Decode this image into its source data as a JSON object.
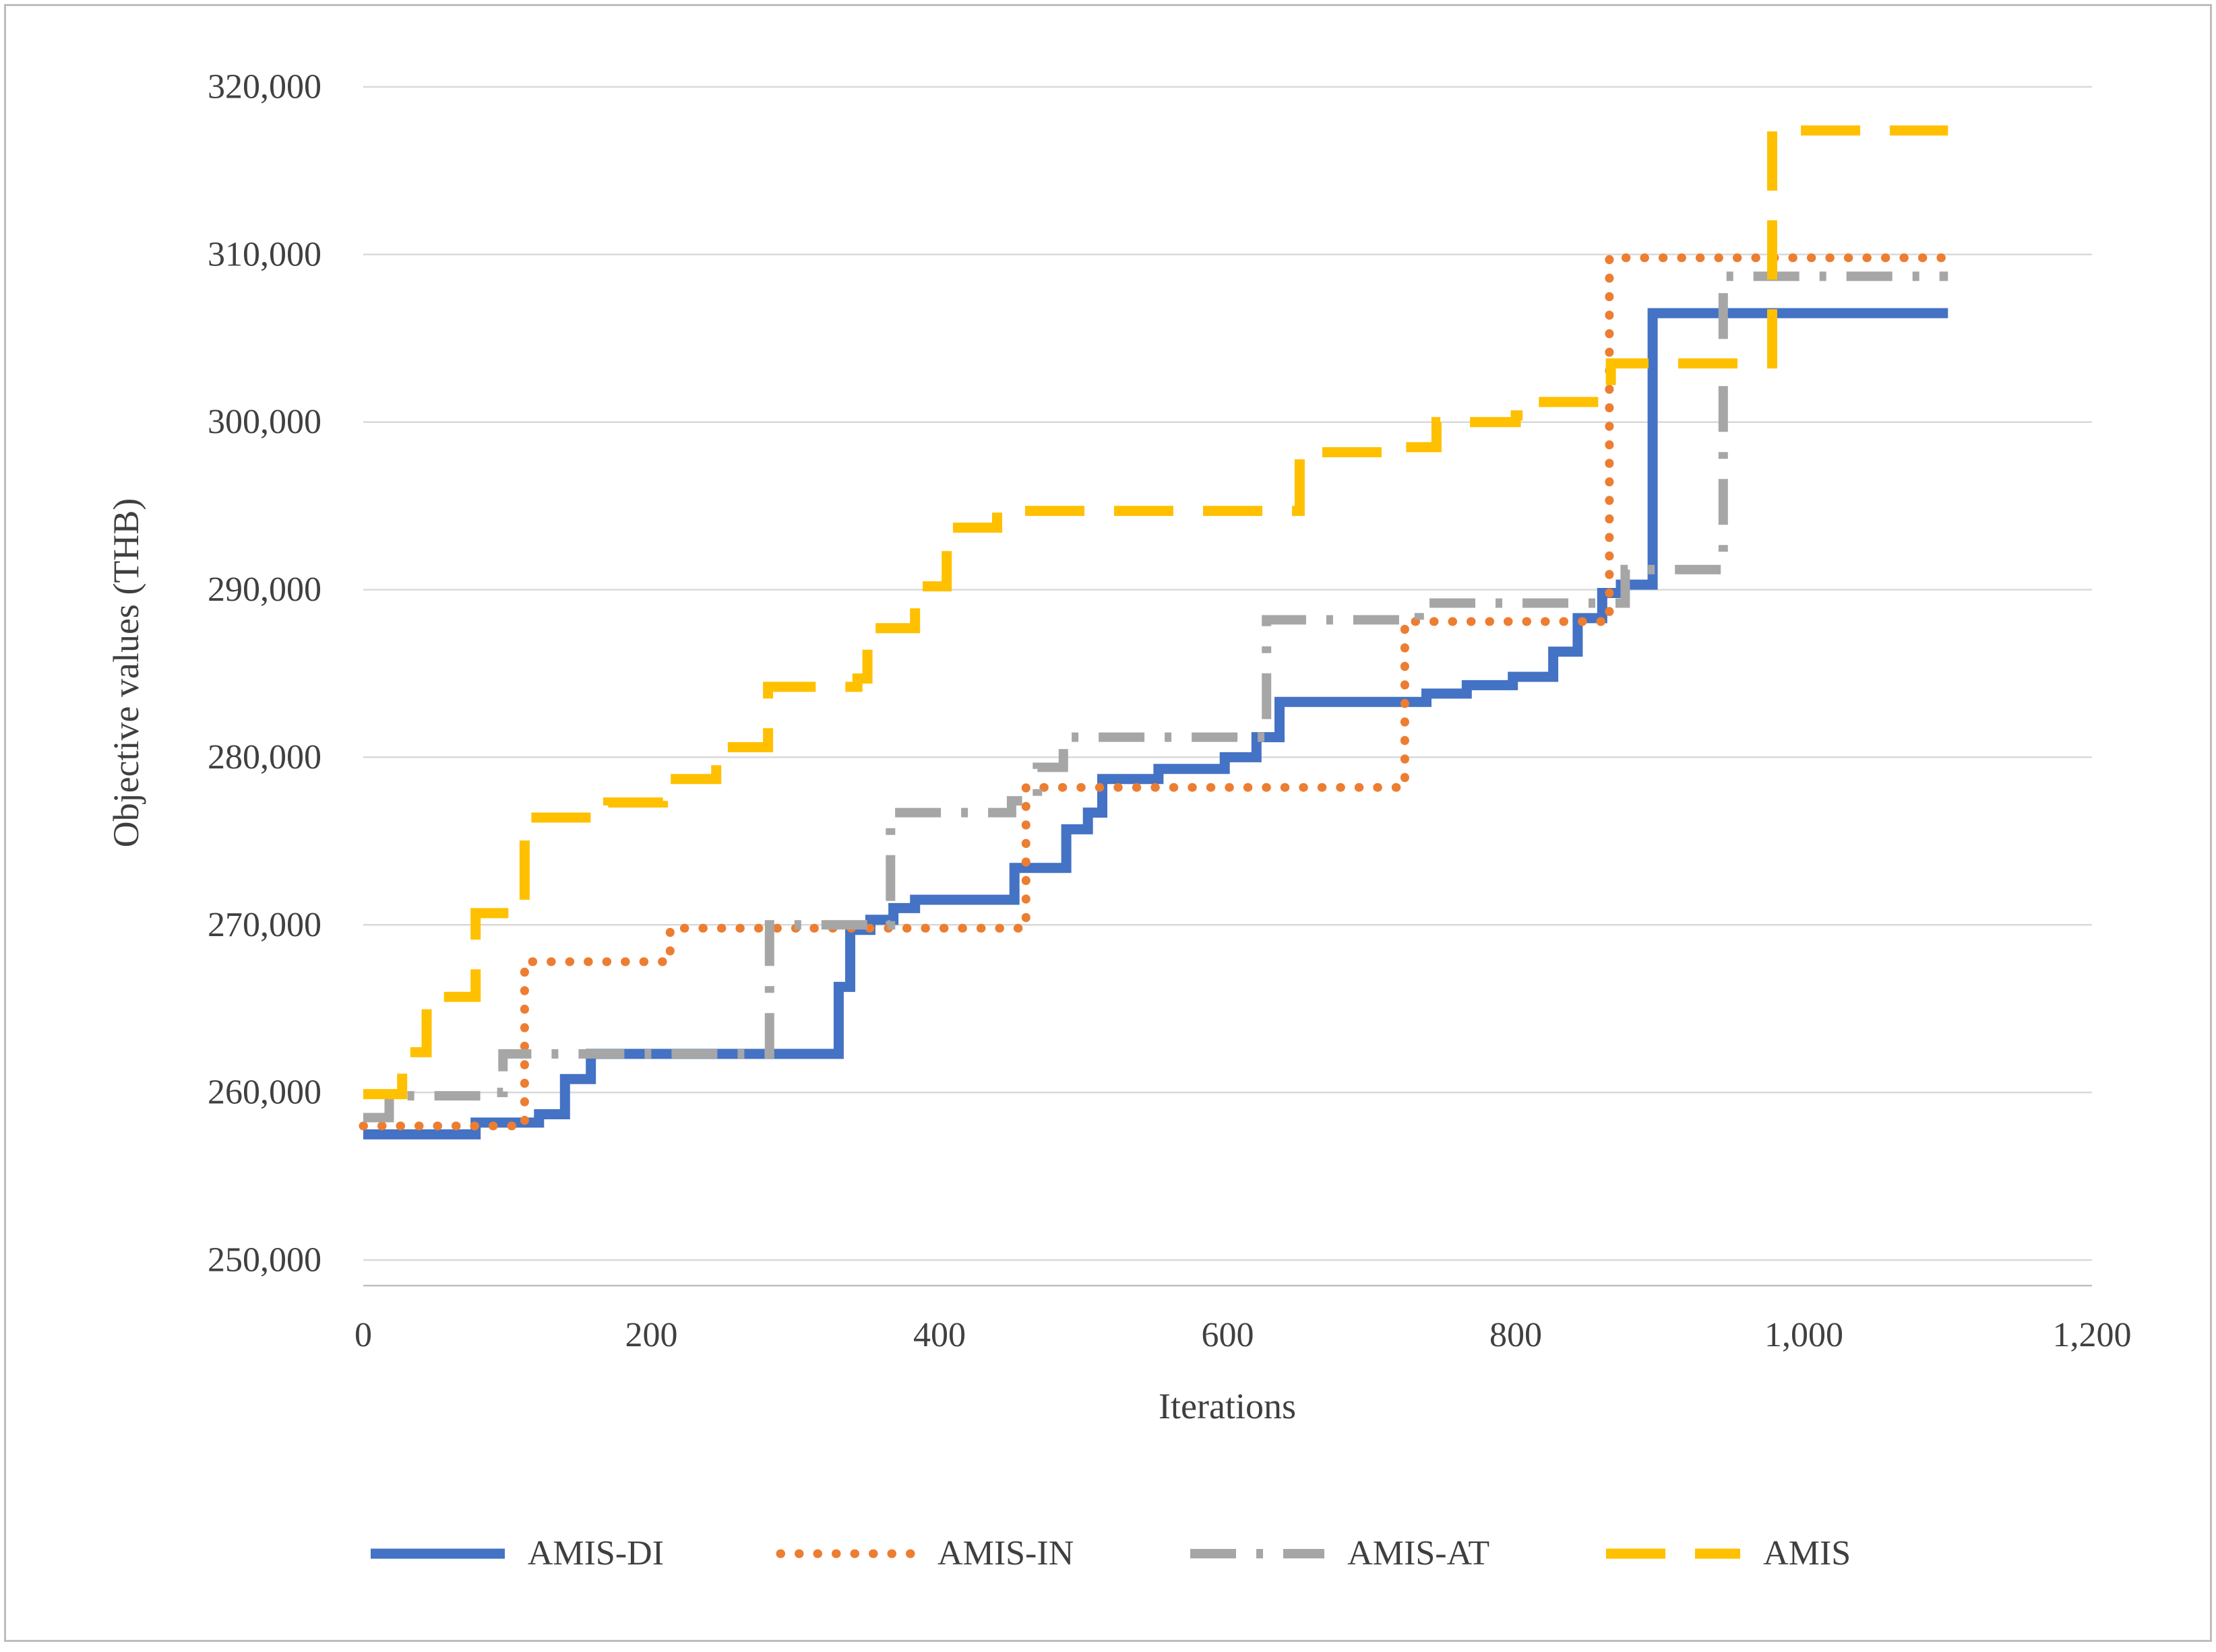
{
  "figure": {
    "background": "#ffffff",
    "border_color": "#bdbdbd"
  },
  "chart_data": {
    "type": "line",
    "subtype": "step",
    "title": "",
    "xlabel": "Iterations",
    "ylabel": "Objective values (THB)",
    "xlim": [
      0,
      1200
    ],
    "ylim": [
      250000,
      320000
    ],
    "grid": "horizontal",
    "legend_position": "bottom",
    "style": {
      "gridline_color": "#d9d9d9",
      "axis_color": "#bfbfbf",
      "text_color": "#404040"
    },
    "xticks": {
      "values": [
        0,
        200,
        400,
        600,
        800,
        1000,
        1200
      ],
      "labels": [
        "0",
        "200",
        "400",
        "600",
        "800",
        "1,000",
        "1,200"
      ]
    },
    "yticks": {
      "values": [
        250000,
        260000,
        270000,
        280000,
        290000,
        300000,
        310000,
        320000
      ],
      "labels": [
        "250,000",
        "260,000",
        "270,000",
        "280,000",
        "290,000",
        "300,000",
        "310,000",
        "320,000"
      ]
    },
    "series": [
      {
        "name": "AMIS-DI",
        "color": "#4472C4",
        "line_style": "solid",
        "points": [
          [
            0,
            257500
          ],
          [
            78,
            257500
          ],
          [
            78,
            258200
          ],
          [
            122,
            258200
          ],
          [
            122,
            258700
          ],
          [
            140,
            258700
          ],
          [
            140,
            260800
          ],
          [
            158,
            260800
          ],
          [
            158,
            262300
          ],
          [
            330,
            262300
          ],
          [
            330,
            266300
          ],
          [
            338,
            266300
          ],
          [
            338,
            269700
          ],
          [
            352,
            269700
          ],
          [
            352,
            270300
          ],
          [
            368,
            270300
          ],
          [
            368,
            271000
          ],
          [
            383,
            271000
          ],
          [
            383,
            271500
          ],
          [
            452,
            271500
          ],
          [
            452,
            273400
          ],
          [
            488,
            273400
          ],
          [
            488,
            275700
          ],
          [
            503,
            275700
          ],
          [
            503,
            276700
          ],
          [
            513,
            276700
          ],
          [
            513,
            278700
          ],
          [
            552,
            278700
          ],
          [
            552,
            279300
          ],
          [
            598,
            279300
          ],
          [
            598,
            280000
          ],
          [
            620,
            280000
          ],
          [
            620,
            281200
          ],
          [
            636,
            281200
          ],
          [
            636,
            283300
          ],
          [
            738,
            283300
          ],
          [
            738,
            283800
          ],
          [
            766,
            283800
          ],
          [
            766,
            284300
          ],
          [
            798,
            284300
          ],
          [
            798,
            284800
          ],
          [
            826,
            284800
          ],
          [
            826,
            286300
          ],
          [
            843,
            286300
          ],
          [
            843,
            288300
          ],
          [
            860,
            288300
          ],
          [
            860,
            289800
          ],
          [
            873,
            289800
          ],
          [
            873,
            290300
          ],
          [
            895,
            290300
          ],
          [
            895,
            306500
          ],
          [
            1100,
            306500
          ]
        ]
      },
      {
        "name": "AMIS-IN",
        "color": "#ED7D31",
        "line_style": "dotted",
        "points": [
          [
            0,
            258000
          ],
          [
            112,
            258000
          ],
          [
            112,
            267800
          ],
          [
            213,
            267800
          ],
          [
            213,
            269800
          ],
          [
            460,
            269800
          ],
          [
            460,
            278200
          ],
          [
            723,
            278200
          ],
          [
            723,
            288100
          ],
          [
            865,
            288100
          ],
          [
            865,
            309800
          ],
          [
            1100,
            309800
          ]
        ]
      },
      {
        "name": "AMIS-AT",
        "color": "#A6A6A6",
        "line_style": "dash-dot",
        "points": [
          [
            0,
            258500
          ],
          [
            18,
            258500
          ],
          [
            18,
            259800
          ],
          [
            92,
            259800
          ],
          [
            92,
            260000
          ],
          [
            97,
            260000
          ],
          [
            97,
            262300
          ],
          [
            282,
            262300
          ],
          [
            282,
            270000
          ],
          [
            366,
            270000
          ],
          [
            366,
            276700
          ],
          [
            450,
            276700
          ],
          [
            450,
            277400
          ],
          [
            468,
            277400
          ],
          [
            468,
            279400
          ],
          [
            486,
            279400
          ],
          [
            486,
            281200
          ],
          [
            627,
            281200
          ],
          [
            627,
            288200
          ],
          [
            733,
            288200
          ],
          [
            733,
            289200
          ],
          [
            876,
            289200
          ],
          [
            876,
            291200
          ],
          [
            944,
            291200
          ],
          [
            944,
            308700
          ],
          [
            1100,
            308700
          ]
        ]
      },
      {
        "name": "AMIS",
        "color": "#FFC000",
        "line_style": "long-dash",
        "points": [
          [
            0,
            259900
          ],
          [
            27,
            259900
          ],
          [
            27,
            262400
          ],
          [
            44,
            262400
          ],
          [
            44,
            265700
          ],
          [
            78,
            265700
          ],
          [
            78,
            270700
          ],
          [
            112,
            270700
          ],
          [
            112,
            276400
          ],
          [
            170,
            276400
          ],
          [
            170,
            277300
          ],
          [
            208,
            277300
          ],
          [
            208,
            278700
          ],
          [
            245,
            278700
          ],
          [
            245,
            280600
          ],
          [
            281,
            280600
          ],
          [
            281,
            284200
          ],
          [
            343,
            284200
          ],
          [
            343,
            284700
          ],
          [
            350,
            284700
          ],
          [
            350,
            287700
          ],
          [
            383,
            287700
          ],
          [
            383,
            290200
          ],
          [
            405,
            290200
          ],
          [
            405,
            293700
          ],
          [
            440,
            293700
          ],
          [
            440,
            294700
          ],
          [
            650,
            294700
          ],
          [
            650,
            298200
          ],
          [
            715,
            298200
          ],
          [
            715,
            298500
          ],
          [
            745,
            298500
          ],
          [
            745,
            300000
          ],
          [
            800,
            300000
          ],
          [
            800,
            300400
          ],
          [
            816,
            300400
          ],
          [
            816,
            301200
          ],
          [
            866,
            301200
          ],
          [
            866,
            303500
          ],
          [
            978,
            303500
          ],
          [
            978,
            317400
          ],
          [
            1100,
            317400
          ]
        ]
      }
    ]
  }
}
